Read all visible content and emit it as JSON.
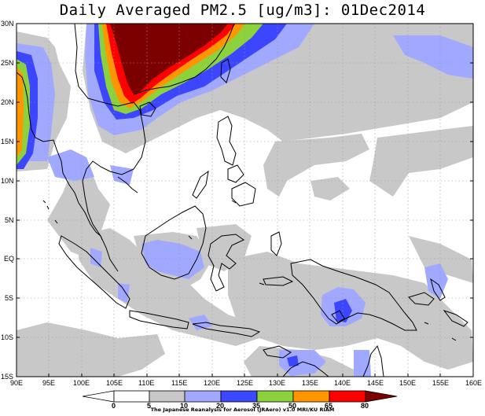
{
  "title": "Daily Averaged PM2.5 [ug/m3]: 01Dec2014",
  "credit": "The Japanese Reanalysis for Aerosol (JRAero) v1.0 MRI/KU RIAM",
  "lat_labels": [
    "30N",
    "25N",
    "20N",
    "15N",
    "10N",
    "5N",
    "EQ",
    "5S",
    "10S",
    "15S"
  ],
  "lon_labels": [
    "90E",
    "95E",
    "100E",
    "105E",
    "110E",
    "115E",
    "120E",
    "125E",
    "130E",
    "135E",
    "140E",
    "145E",
    "150E",
    "155E",
    "160E"
  ],
  "colorbar": {
    "levels": [
      "0",
      "5",
      "10",
      "20",
      "35",
      "50",
      "65",
      "80"
    ],
    "colors": [
      "#ffffff",
      "#ffffff",
      "#c8c8c8",
      "#a0a8ff",
      "#3c46ff",
      "#8cd23c",
      "#ff9600",
      "#ff0000",
      "#7d0000"
    ]
  },
  "palette": {
    "gray": "#c8c8c8",
    "lightblue": "#a0a8ff",
    "blue": "#3c46ff",
    "green": "#8cd23c",
    "orange": "#ff9600",
    "red": "#ff0000",
    "darkred": "#7d0000",
    "coast": "#000000"
  }
}
